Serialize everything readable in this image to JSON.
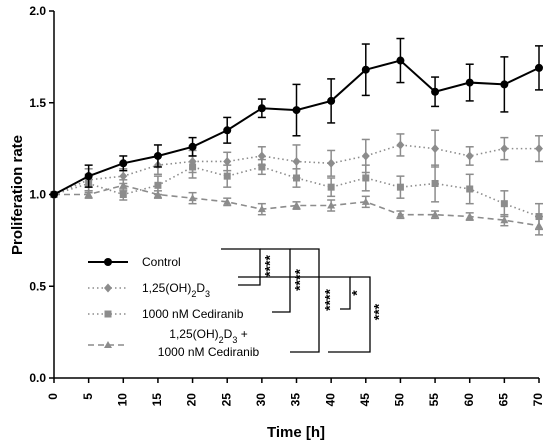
{
  "chart_data": {
    "type": "line",
    "xlabel": "Time [h]",
    "ylabel": "Proliferation rate",
    "xlim": [
      0,
      70
    ],
    "ylim": [
      0,
      2.0
    ],
    "x_ticks": [
      "0",
      "5",
      "10",
      "15",
      "20",
      "25",
      "30",
      "35",
      "40",
      "45",
      "50",
      "55",
      "60",
      "65",
      "70"
    ],
    "y_ticks": [
      "0.0",
      "0.5",
      "1.0",
      "1.5",
      "2.0"
    ],
    "grid": false,
    "legend_position": "bottom-left",
    "x": [
      0,
      5,
      10,
      15,
      20,
      25,
      30,
      35,
      40,
      45,
      50,
      55,
      60,
      65,
      70
    ],
    "series": [
      {
        "name": "Control",
        "legend_parts": [
          "Control"
        ],
        "color": "#000000",
        "marker": "circle",
        "line_style": "solid",
        "values": [
          1.0,
          1.1,
          1.17,
          1.21,
          1.26,
          1.35,
          1.47,
          1.46,
          1.51,
          1.68,
          1.73,
          1.56,
          1.61,
          1.6,
          1.69
        ],
        "errors": [
          0.0,
          0.06,
          0.04,
          0.06,
          0.05,
          0.07,
          0.05,
          0.14,
          0.12,
          0.14,
          0.12,
          0.08,
          0.1,
          0.15,
          0.12
        ]
      },
      {
        "name": "1,25(OH)2D3",
        "legend_parts": [
          "1,25(OH)",
          "2",
          "D",
          "3"
        ],
        "color": "#8c8c8c",
        "marker": "diamond",
        "line_style": "dotted",
        "values": [
          1.0,
          1.08,
          1.1,
          1.16,
          1.18,
          1.18,
          1.21,
          1.18,
          1.17,
          1.21,
          1.27,
          1.25,
          1.21,
          1.25,
          1.25
        ],
        "errors": [
          0.0,
          0.06,
          0.04,
          0.05,
          0.06,
          0.05,
          0.05,
          0.09,
          0.07,
          0.09,
          0.06,
          0.1,
          0.05,
          0.06,
          0.07
        ]
      },
      {
        "name": "1000 nM Cediranib",
        "legend_parts": [
          "1000 nM Cediranib"
        ],
        "color": "#8c8c8c",
        "marker": "square",
        "line_style": "dotted",
        "values": [
          1.0,
          1.06,
          1.0,
          1.05,
          1.15,
          1.1,
          1.15,
          1.09,
          1.04,
          1.09,
          1.04,
          1.06,
          1.03,
          0.95,
          0.88
        ],
        "errors": [
          0.0,
          0.05,
          0.03,
          0.05,
          0.06,
          0.06,
          0.04,
          0.05,
          0.05,
          0.07,
          0.06,
          0.1,
          0.08,
          0.07,
          0.07
        ]
      },
      {
        "name": "1,25(OH)2D3 + 1000 nM Cediranib",
        "legend_parts": [
          "1,25(OH)",
          "2",
          "D",
          "3",
          " +",
          "1000 nM Cediranib"
        ],
        "color": "#8c8c8c",
        "marker": "triangle",
        "line_style": "dashed",
        "values": [
          1.0,
          1.0,
          1.05,
          1.0,
          0.98,
          0.96,
          0.92,
          0.94,
          0.94,
          0.96,
          0.89,
          0.89,
          0.88,
          0.86,
          0.83
        ],
        "errors": [
          0.0,
          0.02,
          0.03,
          0.02,
          0.03,
          0.02,
          0.03,
          0.02,
          0.03,
          0.03,
          0.02,
          0.02,
          0.02,
          0.03,
          0.05
        ]
      }
    ],
    "significance": [
      {
        "between": [
          "Control",
          "1,25(OH)2D3"
        ],
        "label": "****"
      },
      {
        "between": [
          "Control",
          "1000 nM Cediranib"
        ],
        "label": "****"
      },
      {
        "between": [
          "Control",
          "1,25(OH)2D3 + 1000 nM Cediranib"
        ],
        "label": "****"
      },
      {
        "between": [
          "1,25(OH)2D3",
          "1000 nM Cediranib"
        ],
        "label": "*"
      },
      {
        "between": [
          "1,25(OH)2D3",
          "1,25(OH)2D3 + 1000 nM Cediranib"
        ],
        "label": "***"
      }
    ]
  }
}
